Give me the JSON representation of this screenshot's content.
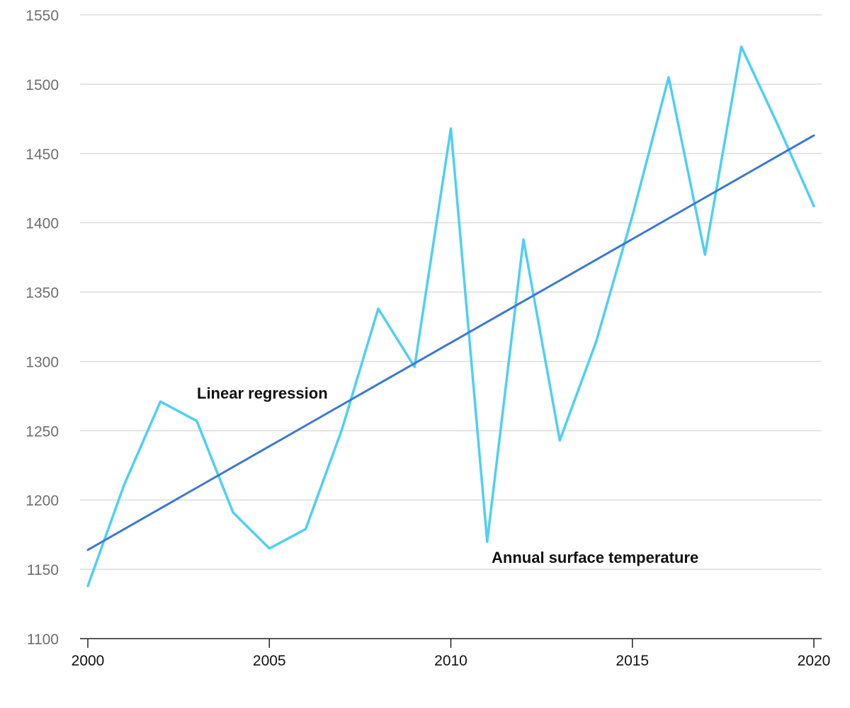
{
  "chart_data": {
    "type": "line",
    "x_range": [
      2000,
      2020
    ],
    "y_range": [
      1100,
      1550
    ],
    "y_ticks": [
      1100,
      1150,
      1200,
      1250,
      1300,
      1350,
      1400,
      1450,
      1500,
      1550
    ],
    "x_ticks": [
      2000,
      2005,
      2010,
      2015,
      2020
    ],
    "grid": "horizontal",
    "series": [
      {
        "name": "Annual surface temperature",
        "color": "#4dcff6",
        "x": [
          2000,
          2001,
          2002,
          2003,
          2004,
          2005,
          2006,
          2007,
          2008,
          2009,
          2010,
          2011,
          2012,
          2013,
          2014,
          2015,
          2016,
          2017,
          2018,
          2019,
          2020
        ],
        "y": [
          1138,
          1211,
          1271,
          1257,
          1191,
          1165,
          1179,
          1251,
          1338,
          1296,
          1468,
          1170,
          1388,
          1243,
          1314,
          1405,
          1505,
          1377,
          1527,
          1471,
          1412
        ]
      },
      {
        "name": "Linear regression",
        "color": "#3b78d0",
        "x": [
          2000,
          2020
        ],
        "y": [
          1164,
          1463
        ]
      }
    ]
  }
}
